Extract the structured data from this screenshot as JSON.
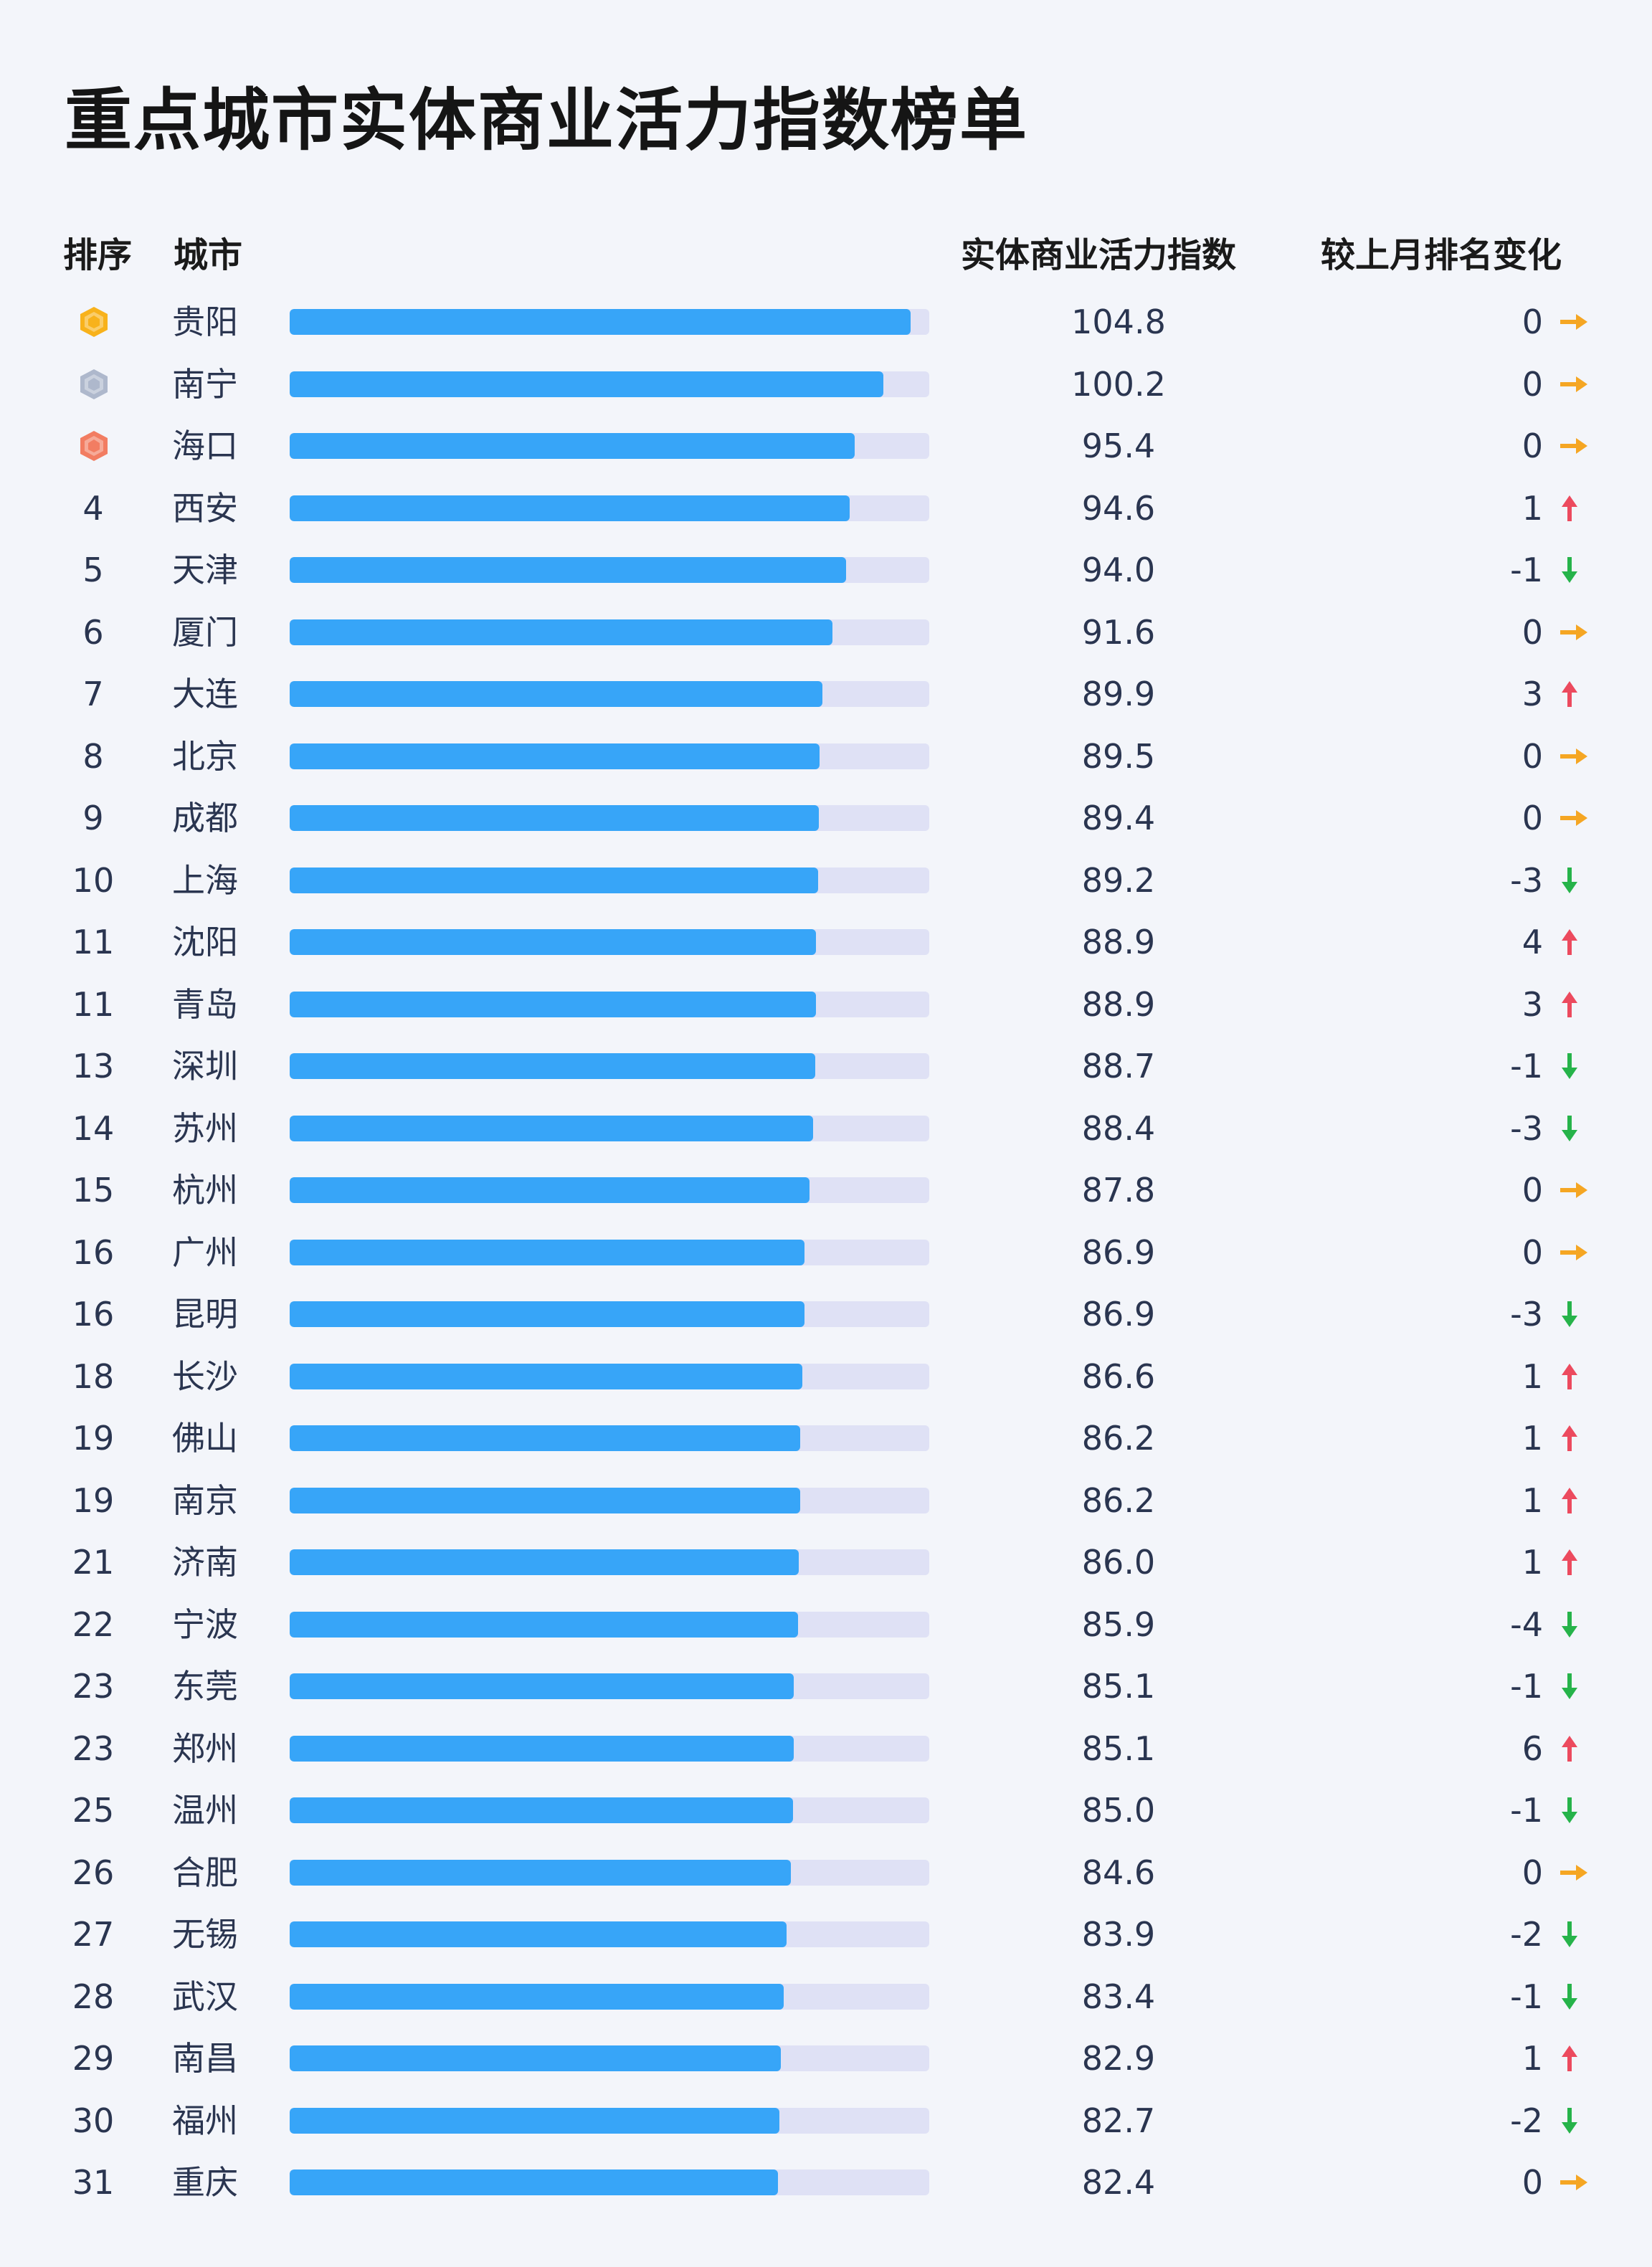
{
  "title": "重点城市实体商业活力指数榜单",
  "headers": {
    "rank": "排序",
    "city": "城市",
    "index": "实体商业活力指数",
    "change": "较上月排名变化"
  },
  "colors": {
    "bar": "#37a5f8",
    "track": "#dfe1f5",
    "up": "#ec4a5e",
    "down": "#26b34a",
    "flat": "#f5a623",
    "gold": "#f8b21b",
    "silver": "#aeb8cc",
    "bronze": "#f27d62"
  },
  "chart_data": {
    "type": "bar",
    "orientation": "horizontal",
    "xlim": [
      0,
      108
    ],
    "categories": [
      "贵阳",
      "南宁",
      "海口",
      "西安",
      "天津",
      "厦门",
      "大连",
      "北京",
      "成都",
      "上海",
      "沈阳",
      "青岛",
      "深圳",
      "苏州",
      "杭州",
      "广州",
      "昆明",
      "长沙",
      "佛山",
      "南京",
      "济南",
      "宁波",
      "东莞",
      "郑州",
      "温州",
      "合肥",
      "无锡",
      "武汉",
      "南昌",
      "福州",
      "重庆"
    ],
    "ranks": [
      "1",
      "2",
      "3",
      "4",
      "5",
      "6",
      "7",
      "8",
      "9",
      "10",
      "11",
      "11",
      "13",
      "14",
      "15",
      "16",
      "16",
      "18",
      "19",
      "19",
      "21",
      "22",
      "23",
      "23",
      "25",
      "26",
      "27",
      "28",
      "29",
      "30",
      "31"
    ],
    "values": [
      104.8,
      100.2,
      95.4,
      94.6,
      94.0,
      91.6,
      89.9,
      89.5,
      89.4,
      89.2,
      88.9,
      88.9,
      88.7,
      88.4,
      87.8,
      86.9,
      86.9,
      86.6,
      86.2,
      86.2,
      86.0,
      85.9,
      85.1,
      85.1,
      85.0,
      84.6,
      83.9,
      83.4,
      82.9,
      82.7,
      82.4
    ],
    "value_labels": [
      "104.8",
      "100.2",
      "95.4",
      "94.6",
      "94.0",
      "91.6",
      "89.9",
      "89.5",
      "89.4",
      "89.2",
      "88.9",
      "88.9",
      "88.7",
      "88.4",
      "87.8",
      "86.9",
      "86.9",
      "86.6",
      "86.2",
      "86.2",
      "86.0",
      "85.9",
      "85.1",
      "85.1",
      "85.0",
      "84.6",
      "83.9",
      "83.4",
      "82.9",
      "82.7",
      "82.4"
    ],
    "rank_change": [
      "0",
      "0",
      "0",
      "1",
      "-1",
      "0",
      "3",
      "0",
      "0",
      "-3",
      "4",
      "3",
      "-1",
      "-3",
      "0",
      "0",
      "-3",
      "1",
      "1",
      "1",
      "1",
      "-4",
      "-1",
      "6",
      "-1",
      "0",
      "-2",
      "-1",
      "1",
      "-2",
      "0"
    ],
    "trend": [
      "flat",
      "flat",
      "flat",
      "up",
      "down",
      "flat",
      "up",
      "flat",
      "flat",
      "down",
      "up",
      "up",
      "down",
      "down",
      "flat",
      "flat",
      "down",
      "up",
      "up",
      "up",
      "up",
      "down",
      "down",
      "up",
      "down",
      "flat",
      "down",
      "down",
      "up",
      "down",
      "flat"
    ],
    "medals": [
      "gold-medal-icon",
      "silver-medal-icon",
      "bronze-medal-icon"
    ]
  }
}
